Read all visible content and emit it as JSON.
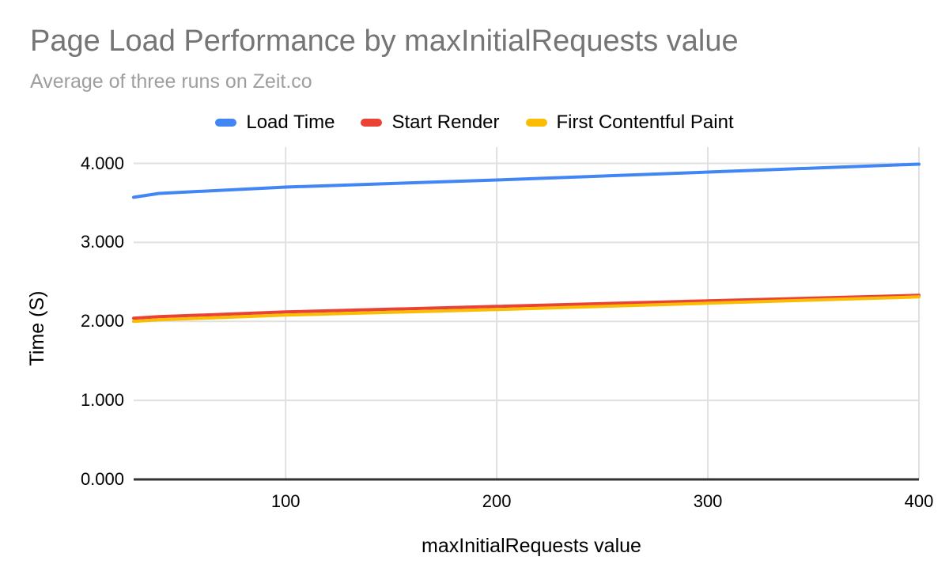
{
  "colors": {
    "title": "#757575",
    "subtitle": "#9E9E9E",
    "gridline": "#E0E0E0",
    "baseline": "#333333",
    "tick_text": "#000000"
  },
  "chart_data": {
    "type": "line",
    "title": "Page Load Performance by maxInitialRequests value",
    "subtitle": "Average of three runs on Zeit.co",
    "xlabel": "maxInitialRequests value",
    "ylabel": "Time (S)",
    "x": [
      28,
      40,
      100,
      200,
      300,
      400
    ],
    "series": [
      {
        "name": "Load Time",
        "color": "#4285F4",
        "values": [
          3.57,
          3.62,
          3.7,
          3.79,
          3.89,
          3.99
        ]
      },
      {
        "name": "Start Render",
        "color": "#EA4335",
        "values": [
          2.04,
          2.06,
          2.12,
          2.19,
          2.26,
          2.33
        ]
      },
      {
        "name": "First Contentful Paint",
        "color": "#FBBC04",
        "values": [
          2.0,
          2.02,
          2.08,
          2.15,
          2.23,
          2.31
        ]
      }
    ],
    "xlim": [
      28,
      400
    ],
    "ylim": [
      0,
      4
    ],
    "xticks": [
      "100",
      "200",
      "300",
      "400"
    ],
    "yticks": [
      "0.000",
      "1.000",
      "2.000",
      "3.000",
      "4.000"
    ],
    "grid": true,
    "legend_position": "top"
  }
}
